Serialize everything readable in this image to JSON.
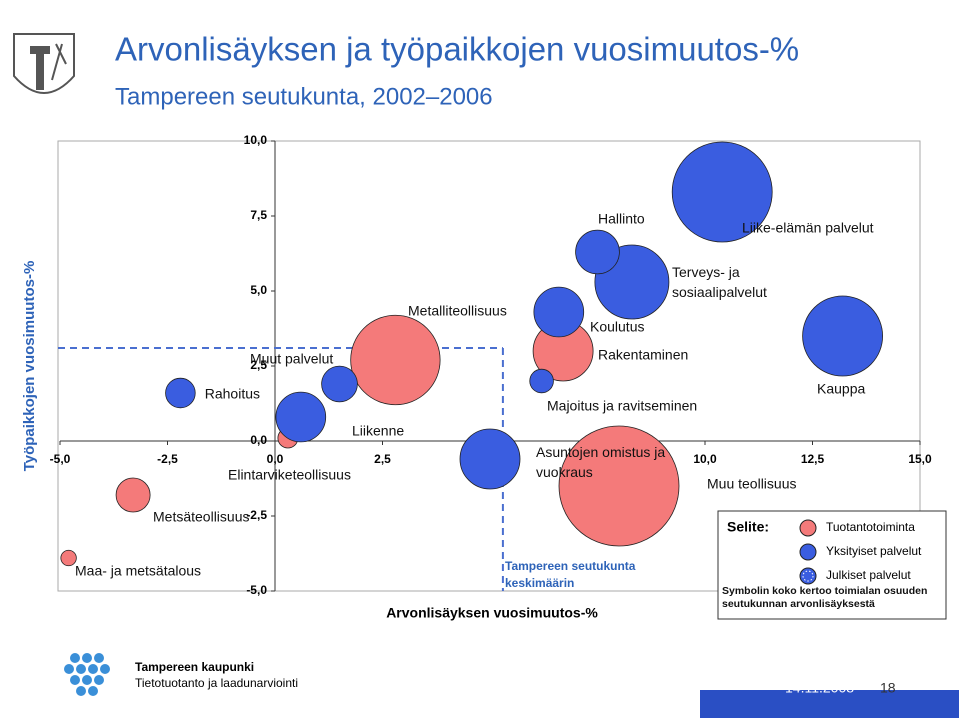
{
  "header": {
    "title": "Arvonlisäyksen ja työpaikkojen vuosimuutos-%",
    "subtitle": "Tampereen seutukunta, 2002–2006"
  },
  "chart_data": {
    "type": "bubble",
    "x_label": "Arvonlisäyksen vuosimuutos-%",
    "y_label": "Työpaikkojen vuosimuutos-%",
    "xlim": [
      -5,
      15
    ],
    "ylim": [
      -5,
      10
    ],
    "xticks": [
      {
        "value": -5,
        "label": "-5,0"
      },
      {
        "value": -2.5,
        "label": "-2,5"
      },
      {
        "value": 0,
        "label": "0,0"
      },
      {
        "value": 2.5,
        "label": "2,5"
      },
      {
        "value": 5,
        "label": "5,0"
      },
      {
        "value": 7.5,
        "label": "7,5"
      },
      {
        "value": 10,
        "label": "10,0"
      },
      {
        "value": 12.5,
        "label": "12,5"
      },
      {
        "value": 15,
        "label": "15,0"
      }
    ],
    "yticks": [
      {
        "value": -5,
        "label": "-5,0"
      },
      {
        "value": -2.5,
        "label": "-2,5"
      },
      {
        "value": 0,
        "label": "0,0"
      },
      {
        "value": 2.5,
        "label": "2,5"
      },
      {
        "value": 5,
        "label": "5,0"
      },
      {
        "value": 7.5,
        "label": "7,5"
      },
      {
        "value": 10,
        "label": "10,0"
      }
    ],
    "average": {
      "label": "Tampereen seutukunta keskimäärin",
      "x": 5.3,
      "y": 3.1
    },
    "series": [
      {
        "name": "Tuotantotoiminta",
        "color": "#f47a7a",
        "labels": [
          "Muu teollisuus",
          "Metalliteollisuus",
          "Rakentaminen",
          "Metsäteollisuus",
          "Maa- ja metsätalous",
          "Elintarviketeollisuus"
        ],
        "x": [
          8.0,
          2.8,
          6.7,
          -3.3,
          -4.8,
          0.3
        ],
        "y": [
          -1.5,
          2.7,
          3.0,
          -1.8,
          -3.9,
          0.1
        ],
        "size": [
          36,
          20,
          9,
          2.9,
          0.6,
          1
        ]
      },
      {
        "name": "Yksityiset palvelut",
        "color": "#3a5de0",
        "labels": [
          "Liike-elämän palvelut",
          "Kauppa",
          "Terveys- ja sosiaalipalvelut",
          "Asuntojen omistus ja vuokraus",
          "Liikenne",
          "Koulutus",
          "Hallinto",
          "Muut palvelut",
          "Rahoitus",
          "Majoitus ja ravitseminen"
        ],
        "x": [
          10.4,
          13.2,
          8.3,
          5.0,
          0.6,
          6.6,
          7.5,
          1.5,
          -2.2,
          6.2
        ],
        "y": [
          8.3,
          3.5,
          5.3,
          -0.6,
          0.8,
          4.3,
          6.3,
          1.9,
          1.6,
          2.0
        ],
        "size": [
          25,
          16,
          13.7,
          9,
          6.2,
          6.2,
          4.8,
          3.2,
          2.2,
          1.4
        ]
      },
      {
        "name": "Julkiset palvelut",
        "color": "#3a5de0",
        "labels": [],
        "x": [],
        "y": [],
        "size": []
      }
    ],
    "legend_title": "Selite:",
    "legend_note": "Symbolin koko kertoo toimialan osuuden seutukunnan arvonlisäyksestä"
  },
  "footer": {
    "org": "Tampereen kaupunki",
    "unit": "Tietotuotanto ja laadunarviointi",
    "date": "14.11.2008",
    "page": "18"
  }
}
